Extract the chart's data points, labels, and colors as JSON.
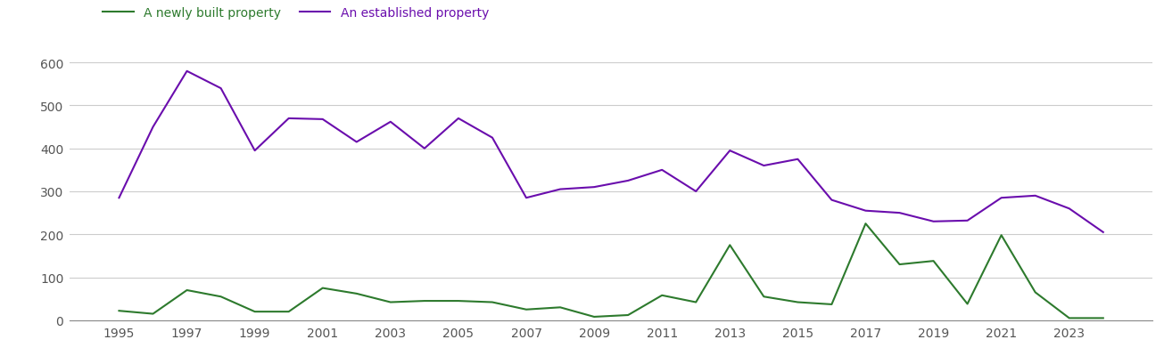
{
  "years": [
    1995,
    1996,
    1997,
    1998,
    1999,
    2000,
    2001,
    2002,
    2003,
    2004,
    2005,
    2006,
    2007,
    2008,
    2009,
    2010,
    2011,
    2012,
    2013,
    2014,
    2015,
    2016,
    2017,
    2018,
    2019,
    2020,
    2021,
    2022,
    2023,
    2024
  ],
  "newly_built": [
    22,
    15,
    70,
    55,
    20,
    20,
    75,
    62,
    42,
    45,
    45,
    42,
    25,
    30,
    8,
    12,
    58,
    42,
    175,
    55,
    42,
    37,
    225,
    130,
    138,
    38,
    198,
    65,
    5,
    5
  ],
  "established": [
    285,
    450,
    580,
    540,
    395,
    470,
    468,
    415,
    462,
    400,
    470,
    425,
    285,
    305,
    310,
    325,
    350,
    300,
    395,
    360,
    375,
    280,
    255,
    250,
    230,
    232,
    285,
    290,
    260,
    205
  ],
  "newly_built_color": "#2d7a2d",
  "established_color": "#6a0dad",
  "background_color": "#ffffff",
  "grid_color": "#cccccc",
  "ylim": [
    0,
    620
  ],
  "yticks": [
    0,
    100,
    200,
    300,
    400,
    500,
    600
  ],
  "xtick_years": [
    1995,
    1997,
    1999,
    2001,
    2003,
    2005,
    2007,
    2009,
    2011,
    2013,
    2015,
    2017,
    2019,
    2021,
    2023
  ],
  "legend_newly_built": "A newly built property",
  "legend_established": "An established property",
  "linewidth": 1.5
}
